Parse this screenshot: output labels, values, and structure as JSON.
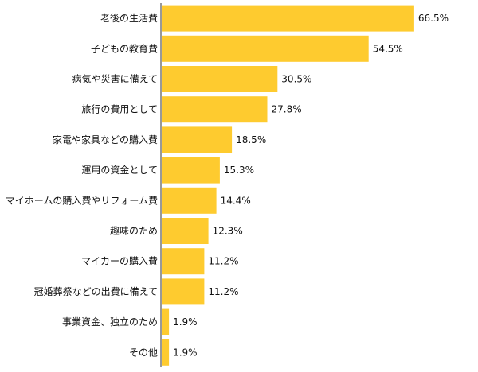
{
  "chart_data": {
    "type": "bar",
    "orientation": "horizontal",
    "categories": [
      "老後の生活費",
      "子どもの教育費",
      "病気や災害に備えて",
      "旅行の費用として",
      "家電や家具などの購入費",
      "運用の資金として",
      "マイホームの購入費やリフォーム費",
      "趣味のため",
      "マイカーの購入費",
      "冠婚葬祭などの出費に備えて",
      "事業資金、独立のため",
      "その他"
    ],
    "values": [
      66.5,
      54.5,
      30.5,
      27.8,
      18.5,
      15.3,
      14.4,
      12.3,
      11.2,
      11.2,
      1.9,
      1.9
    ],
    "value_labels": [
      "66.5%",
      "54.5%",
      "30.5%",
      "27.8%",
      "18.5%",
      "15.3%",
      "14.4%",
      "12.3%",
      "11.2%",
      "11.2%",
      "1.9%",
      "1.9%"
    ],
    "unit": "%",
    "xlim": [
      0,
      68
    ],
    "grid": false,
    "legend": "none",
    "bar_color": "#fecb2f",
    "title": "",
    "xlabel": "",
    "ylabel": ""
  }
}
